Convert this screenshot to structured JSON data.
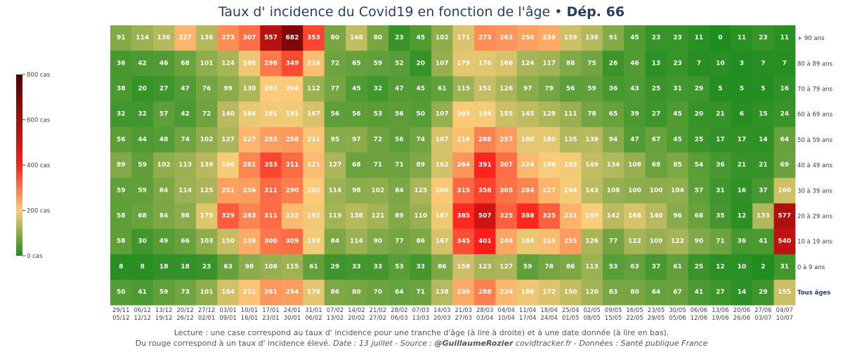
{
  "title": {
    "main": "Taux d' incidence du Covid19 en fonction de l'âge • ",
    "dept": "Dép. 66"
  },
  "footer": {
    "line1": "Lecture : une case correspond au taux d' incidence pour une tranche d'âge (à lire à droite) et à une date donnée (à lire en bas).",
    "line2_prefix": "Du rouge correspond à un taux d' incidence élevé.  ",
    "line2_date": "Date : 13 juillet - Source : ",
    "line2_author": "@GuillaumeRozier",
    "line2_suffix": " covidtracker.fr - Données : Santé publique France"
  },
  "chart_data": {
    "type": "heatmap",
    "colorscale": {
      "min": 0,
      "max": 800,
      "ticks": [
        "0 cas",
        "200 cas",
        "400 cas",
        "600 cas",
        "800 cas"
      ],
      "tick_values": [
        0,
        200,
        400,
        600,
        800
      ],
      "colors": [
        "#1f8c1f",
        "#fbcd7a",
        "#fe1d1b",
        "#4a0000"
      ]
    },
    "x_top": [
      "29/11",
      "06/12",
      "13/12",
      "20/12",
      "27/12",
      "03/01",
      "10/01",
      "17/01",
      "24/01",
      "31/01",
      "07/02",
      "14/02",
      "21/02",
      "28/02",
      "07/03",
      "14/03",
      "21/03",
      "28/03",
      "04/04",
      "11/04",
      "18/04",
      "25/04",
      "02/05",
      "09/05",
      "16/05",
      "23/05",
      "30/05",
      "06/06",
      "13/06",
      "20/06",
      "27/06",
      "04/07"
    ],
    "x_bottom": [
      "05/12",
      "12/12",
      "19/12",
      "26/12",
      "02/01",
      "09/01",
      "16/01",
      "23/01",
      "30/01",
      "06/02",
      "13/02",
      "20/02",
      "27/02",
      "06/03",
      "13/03",
      "20/03",
      "27/03",
      "03/04",
      "10/04",
      "17/04",
      "24/04",
      "01/05",
      "08/05",
      "15/05",
      "22/05",
      "29/05",
      "05/06",
      "12/06",
      "19/06",
      "26/06",
      "03/07",
      "10/07"
    ],
    "rows": [
      {
        "label": "+ 90 ans",
        "values": [
          91,
          114,
          136,
          227,
          136,
          273,
          307,
          557,
          682,
          353,
          80,
          148,
          80,
          23,
          45,
          102,
          171,
          273,
          262,
          250,
          239,
          159,
          136,
          91,
          45,
          23,
          23,
          11,
          0,
          11,
          23,
          11
        ]
      },
      {
        "label": "80 à 89 ans",
        "values": [
          36,
          42,
          46,
          68,
          101,
          124,
          186,
          296,
          349,
          218,
          72,
          65,
          59,
          52,
          20,
          107,
          179,
          176,
          166,
          124,
          117,
          88,
          75,
          26,
          46,
          13,
          23,
          7,
          10,
          3,
          7,
          7
        ]
      },
      {
        "label": "70 à 79 ans",
        "values": [
          38,
          20,
          27,
          47,
          76,
          99,
          130,
          202,
          204,
          112,
          77,
          45,
          32,
          47,
          45,
          61,
          115,
          151,
          126,
          97,
          79,
          56,
          59,
          36,
          43,
          25,
          31,
          29,
          5,
          5,
          5,
          16
        ]
      },
      {
        "label": "60 à 69 ans",
        "values": [
          32,
          32,
          57,
          42,
          72,
          140,
          184,
          191,
          191,
          167,
          56,
          56,
          53,
          56,
          50,
          107,
          203,
          194,
          155,
          145,
          128,
          111,
          78,
          65,
          39,
          27,
          45,
          20,
          21,
          6,
          15,
          24
        ]
      },
      {
        "label": "50 à 59 ans",
        "values": [
          56,
          44,
          48,
          74,
          102,
          127,
          227,
          253,
          258,
          211,
          95,
          97,
          72,
          56,
          74,
          167,
          216,
          288,
          257,
          180,
          180,
          135,
          139,
          94,
          47,
          67,
          45,
          25,
          17,
          17,
          14,
          64
        ]
      },
      {
        "label": "40 à 49 ans",
        "values": [
          89,
          59,
          102,
          113,
          139,
          196,
          281,
          353,
          311,
          221,
          127,
          68,
          71,
          71,
          89,
          162,
          264,
          391,
          307,
          224,
          198,
          193,
          149,
          134,
          108,
          68,
          85,
          54,
          36,
          21,
          21,
          69
        ]
      },
      {
        "label": "30 à 39 ans",
        "values": [
          59,
          59,
          84,
          114,
          125,
          251,
          256,
          311,
          290,
          202,
          114,
          98,
          102,
          84,
          125,
          206,
          315,
          358,
          305,
          284,
          227,
          194,
          143,
          108,
          100,
          100,
          104,
          57,
          31,
          16,
          37,
          160
        ]
      },
      {
        "label": "20 à 29 ans",
        "values": [
          58,
          68,
          84,
          98,
          175,
          329,
          283,
          311,
          222,
          192,
          119,
          138,
          121,
          89,
          110,
          187,
          385,
          507,
          325,
          388,
          325,
          231,
          199,
          142,
          168,
          140,
          96,
          68,
          35,
          12,
          133,
          577
        ]
      },
      {
        "label": "10 à 19 ans",
        "values": [
          58,
          30,
          49,
          66,
          103,
          150,
          238,
          300,
          309,
          193,
          84,
          114,
          90,
          77,
          86,
          167,
          345,
          401,
          244,
          184,
          219,
          255,
          126,
          77,
          122,
          109,
          122,
          90,
          71,
          36,
          41,
          540
        ]
      },
      {
        "label": "0 à 9 ans",
        "values": [
          8,
          8,
          18,
          18,
          23,
          63,
          98,
          108,
          115,
          61,
          29,
          33,
          33,
          53,
          33,
          86,
          158,
          123,
          127,
          59,
          78,
          86,
          113,
          53,
          63,
          37,
          61,
          25,
          12,
          10,
          2,
          31
        ]
      },
      {
        "label": "Tous âges",
        "values": [
          50,
          41,
          59,
          73,
          101,
          164,
          211,
          261,
          254,
          178,
          86,
          80,
          70,
          64,
          71,
          138,
          239,
          288,
          224,
          186,
          172,
          150,
          120,
          83,
          80,
          64,
          67,
          41,
          27,
          14,
          29,
          155
        ]
      }
    ]
  }
}
